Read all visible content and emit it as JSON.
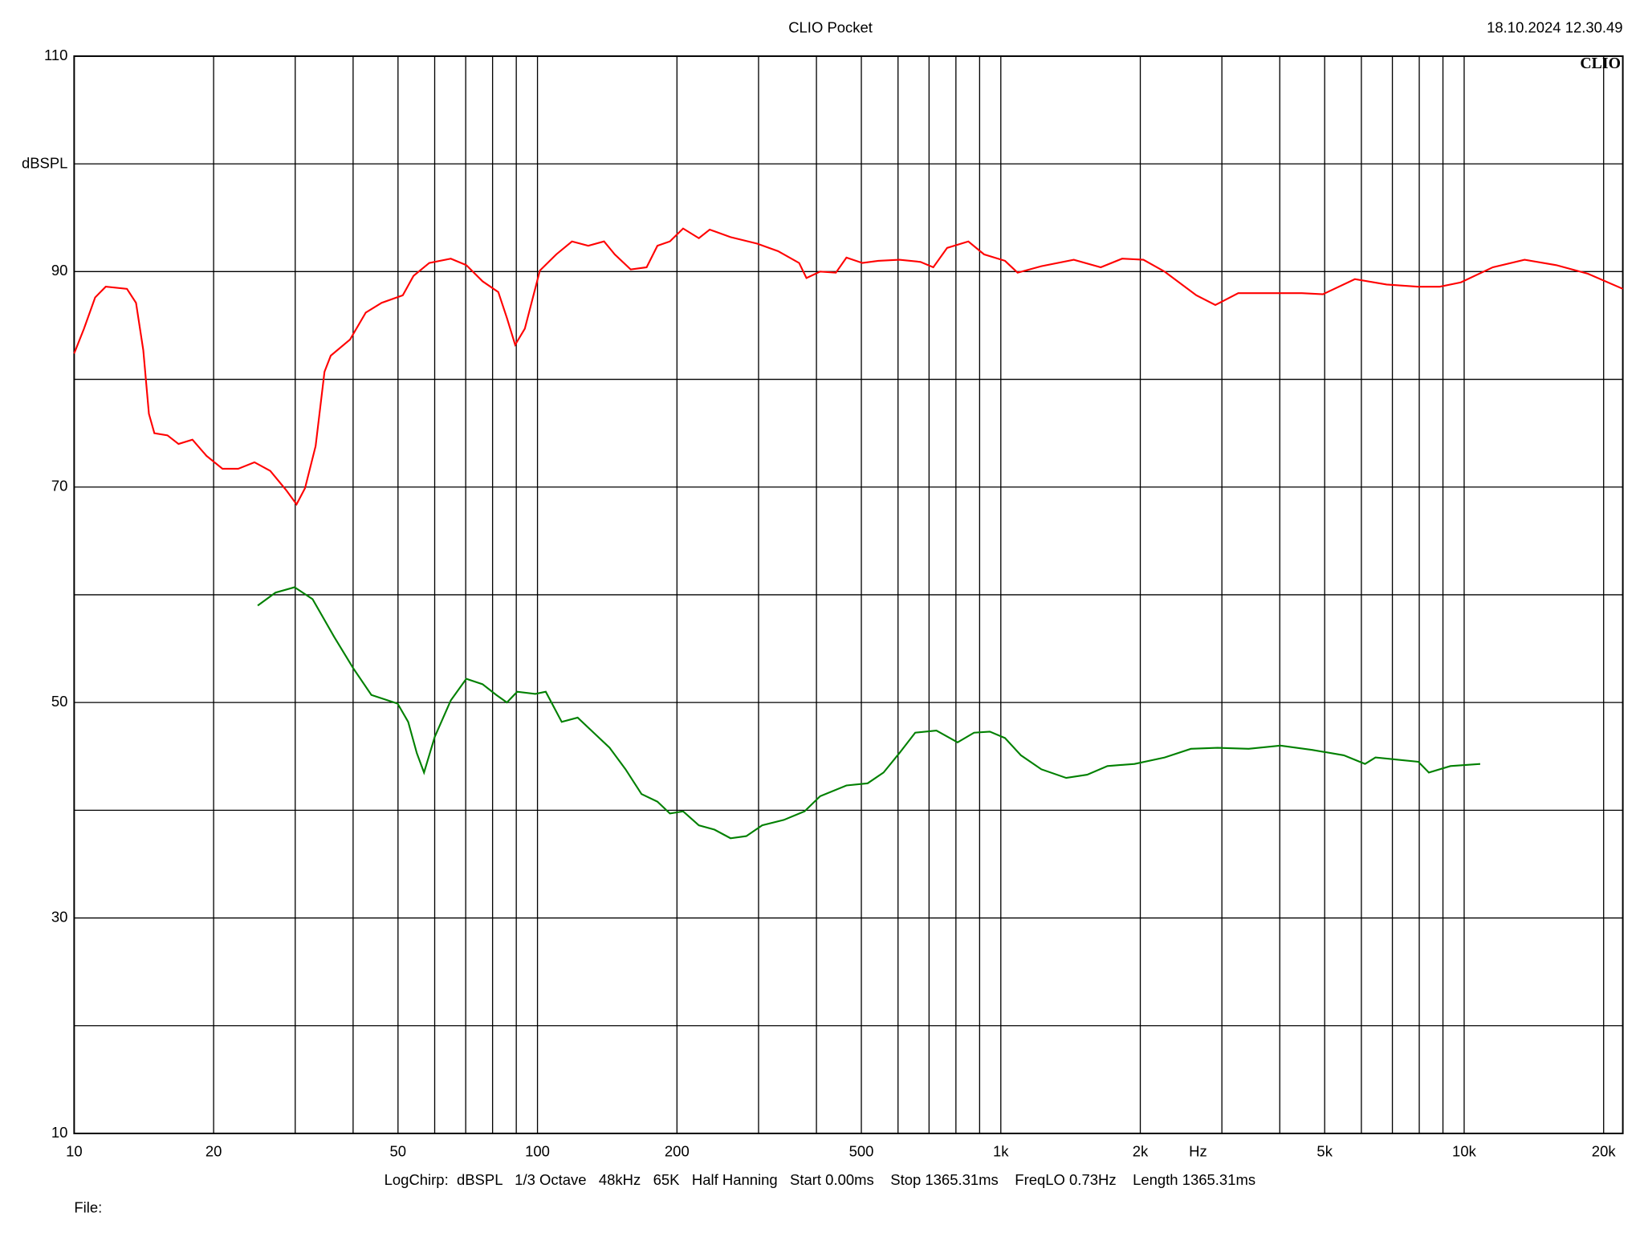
{
  "chart_data": {
    "type": "line",
    "title": "CLIO Pocket",
    "timestamp": "18.10.2024 12.30.49",
    "logo": "CLIO",
    "ylabel": "dBSPL",
    "xlabel": "Hz",
    "footer": "LogChirp:  dBSPL   1/3 Octave   48kHz   65K   Half Hanning   Start 0.00ms    Stop 1365.31ms    FreqLO 0.73Hz    Length 1365.31ms",
    "file_label": "File:",
    "xscale": "log",
    "grid": true,
    "xlim": [
      10,
      22000
    ],
    "ylim": [
      10,
      110
    ],
    "xticks": [
      10,
      20,
      50,
      100,
      200,
      500,
      {
        "value": 1000,
        "label": "1k"
      },
      {
        "value": 2000,
        "label": "2k"
      },
      {
        "value": 5000,
        "label": "5k"
      },
      {
        "value": 10000,
        "label": "10k"
      },
      {
        "value": 20000,
        "label": "20k"
      }
    ],
    "xgrid": [
      10,
      20,
      30,
      40,
      50,
      60,
      70,
      80,
      90,
      100,
      200,
      300,
      400,
      500,
      600,
      700,
      800,
      900,
      1000,
      2000,
      3000,
      4000,
      5000,
      6000,
      7000,
      8000,
      9000,
      10000,
      20000
    ],
    "yticks": [
      10,
      30,
      50,
      70,
      90,
      110
    ],
    "ygrid": [
      10,
      20,
      30,
      40,
      50,
      60,
      70,
      80,
      90,
      100,
      110
    ],
    "series": [
      {
        "color": "#ff0000",
        "x": [
          10,
          10.5,
          11.1,
          11.7,
          13.0,
          13.6,
          14.1,
          14.5,
          14.9,
          15.9,
          16.8,
          18.0,
          19.3,
          20.9,
          22.6,
          24.5,
          26.5,
          28.7,
          30.2,
          31.5,
          33.2,
          34.7,
          35.8,
          39.4,
          42.6,
          46.1,
          51.2,
          54.0,
          58.4,
          65.0,
          70.2,
          76.1,
          82.3,
          85.9,
          89.5,
          93.9,
          101.2,
          109.8,
          118.7,
          128.7,
          139.2,
          146.8,
          158.9,
          172.0,
          181.5,
          193.1,
          206.2,
          223.0,
          235.3,
          261.0,
          297.9,
          330.5,
          367.0,
          380.6,
          407.4,
          440.6,
          464.3,
          502.6,
          543.8,
          604.0,
          670.8,
          714.9,
          765.9,
          851.0,
          920.0,
          1021,
          1087,
          1223,
          1437,
          1643,
          1827,
          2031,
          2257,
          2642,
          2904,
          3254,
          3811,
          4462,
          4957,
          5809,
          6801,
          7965,
          8854,
          9840,
          11530,
          13500,
          15800,
          18500,
          22000
        ],
        "values": [
          82.4,
          84.7,
          87.6,
          88.6,
          88.4,
          87.1,
          82.7,
          76.8,
          75.0,
          74.8,
          74.0,
          74.4,
          72.9,
          71.7,
          71.7,
          72.3,
          71.5,
          69.7,
          68.4,
          69.9,
          73.8,
          80.7,
          82.2,
          83.7,
          86.2,
          87.1,
          87.8,
          89.6,
          90.8,
          91.2,
          90.6,
          89.1,
          88.1,
          85.7,
          83.2,
          84.7,
          90.1,
          91.6,
          92.8,
          92.4,
          92.8,
          91.6,
          90.2,
          90.4,
          92.4,
          92.8,
          94.0,
          93.1,
          93.9,
          93.2,
          92.6,
          91.9,
          90.8,
          89.4,
          90.0,
          89.9,
          91.3,
          90.8,
          91.0,
          91.1,
          90.9,
          90.4,
          92.2,
          92.8,
          91.6,
          91.0,
          89.9,
          90.5,
          91.1,
          90.4,
          91.2,
          91.1,
          90.0,
          87.8,
          86.9,
          88.0,
          88.0,
          88.0,
          87.9,
          89.3,
          88.8,
          88.6,
          88.6,
          89.0,
          90.4,
          91.1,
          90.6,
          89.8,
          88.4
        ]
      },
      {
        "color": "#008000",
        "x": [
          24.9,
          27.2,
          29.9,
          32.7,
          36.4,
          40.0,
          43.8,
          49.9,
          52.6,
          54.9,
          56.9,
          60.0,
          65.0,
          70.2,
          76.1,
          81.5,
          85.9,
          90.4,
          98.9,
          104.2,
          112.8,
          122.1,
          132.2,
          143.1,
          154.9,
          167.7,
          181.5,
          193.1,
          206.2,
          223.0,
          241.0,
          261.0,
          282.3,
          305.5,
          340.1,
          377.0,
          407.4,
          464.3,
          515.9,
          558.3,
          604.0,
          653.5,
          726.1,
          806.7,
          875.4,
          946.9,
          1021,
          1105,
          1223,
          1384,
          1536,
          1699,
          1943,
          2257,
          2572,
          2935,
          3427,
          4013,
          4698,
          5500,
          6110,
          6436,
          7166,
          7965,
          8390,
          9340,
          10830
        ],
        "values": [
          59.0,
          60.2,
          60.7,
          59.6,
          56.1,
          53.2,
          50.7,
          49.9,
          48.2,
          45.3,
          43.5,
          46.8,
          50.2,
          52.2,
          51.7,
          50.7,
          50.0,
          51.0,
          50.8,
          51.0,
          48.2,
          48.6,
          47.2,
          45.8,
          43.8,
          41.5,
          40.8,
          39.7,
          39.9,
          38.6,
          38.2,
          37.4,
          37.6,
          38.6,
          39.1,
          39.9,
          41.3,
          42.3,
          42.5,
          43.5,
          45.3,
          47.2,
          47.4,
          46.3,
          47.2,
          47.3,
          46.7,
          45.1,
          43.8,
          43.0,
          43.3,
          44.1,
          44.3,
          44.9,
          45.7,
          45.8,
          45.7,
          46.0,
          45.6,
          45.1,
          44.3,
          44.9,
          44.7,
          44.5,
          43.5,
          44.1,
          44.3
        ]
      }
    ]
  }
}
